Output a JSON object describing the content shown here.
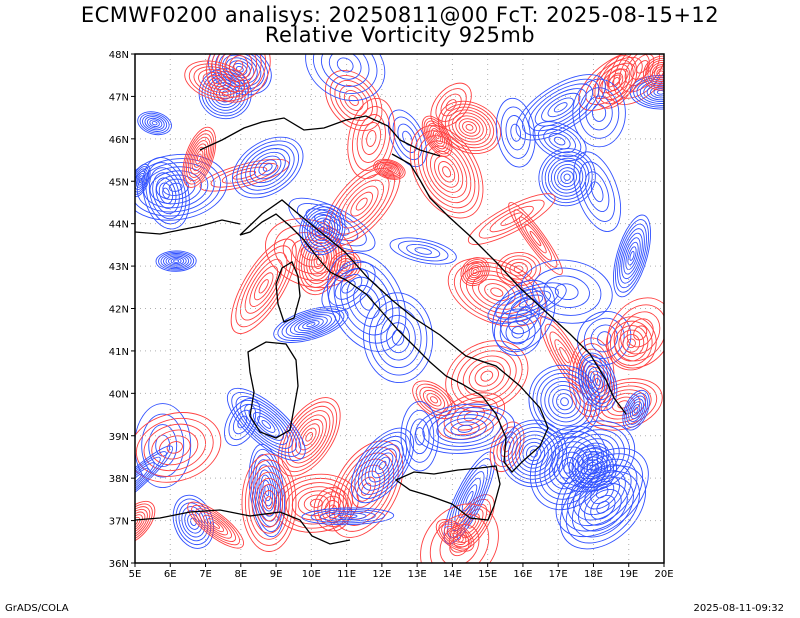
{
  "header": {
    "title_line1": "ECMWF0200 analisys: 20250811@00 FcT: 2025-08-15+12",
    "title_line2": "Relative Vorticity 925mb"
  },
  "map": {
    "lon_labels": [
      "5E",
      "6E",
      "7E",
      "8E",
      "9E",
      "10E",
      "11E",
      "12E",
      "13E",
      "14E",
      "15E",
      "16E",
      "17E",
      "18E",
      "19E",
      "20E"
    ],
    "lat_labels": [
      "36N",
      "37N",
      "38N",
      "39N",
      "40N",
      "41N",
      "42N",
      "43N",
      "44N",
      "45N",
      "46N",
      "47N",
      "48N"
    ],
    "lon_range": [
      5,
      20
    ],
    "lat_range": [
      36,
      48
    ],
    "colors": {
      "positive_vorticity": "#ff4040",
      "negative_vorticity": "#3050ff",
      "coastline": "#000000",
      "grid": "#b0b0b0"
    }
  },
  "footer": {
    "left": "GrADS/COLA",
    "right": "2025-08-11-09:32"
  }
}
